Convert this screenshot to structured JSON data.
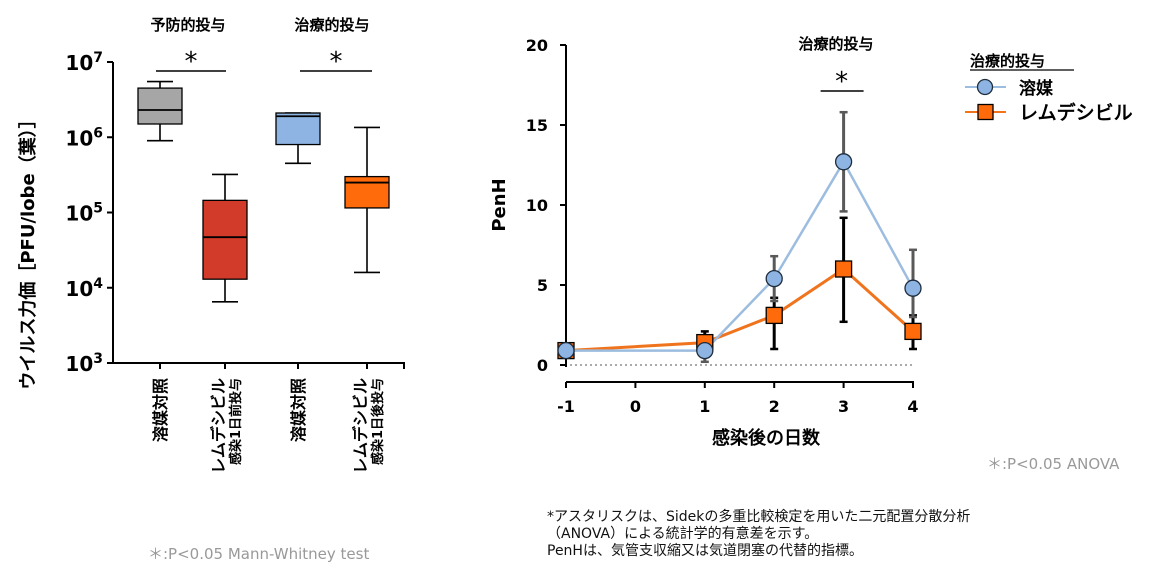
{
  "chart_data": [
    {
      "type": "boxplot",
      "ylabel": "ウイルス力価［PFU/lobe（葉）］",
      "yscale": "log",
      "ylim": [
        1000,
        10000000
      ],
      "yticks": [
        {
          "value": 1000,
          "base": "10",
          "exp": "3"
        },
        {
          "value": 10000,
          "base": "10",
          "exp": "4"
        },
        {
          "value": 100000,
          "base": "10",
          "exp": "5"
        },
        {
          "value": 1000000,
          "base": "10",
          "exp": "6"
        },
        {
          "value": 10000000,
          "base": "10",
          "exp": "7"
        }
      ],
      "groups": [
        {
          "title": "予防的投与",
          "significance": "*"
        },
        {
          "title": "治療的投与",
          "significance": "*"
        }
      ],
      "boxes": [
        {
          "label_lines": [
            "溶媒対照"
          ],
          "color": "#a6a6a6",
          "min": 900000,
          "q1": 1500000,
          "median": 2300000,
          "q3": 4500000,
          "max": 5500000
        },
        {
          "label_lines": [
            "レムデシビル",
            "感染1日前投与"
          ],
          "color": "#d23b2a",
          "min": 6500,
          "q1": 13000,
          "median": 47000,
          "q3": 145000,
          "max": 320000
        },
        {
          "label_lines": [
            "溶媒対照"
          ],
          "color": "#8db4e2",
          "min": 450000,
          "q1": 800000,
          "median": 1900000,
          "q3": 2100000,
          "max": 2100000
        },
        {
          "label_lines": [
            "レムデシビル",
            "感染1日後投与"
          ],
          "color": "#ff6a0a",
          "min": 16000,
          "q1": 115000,
          "median": 250000,
          "q3": 300000,
          "max": 1350000
        }
      ],
      "footnote": "＊:P<0.05 Mann-Whitney test"
    },
    {
      "type": "line",
      "title": "治療的投与",
      "xlabel": "感染後の日数",
      "ylabel": "PenH",
      "xlim": [
        -1,
        4
      ],
      "ylim": [
        0,
        20
      ],
      "xticks": [
        -1,
        0,
        1,
        2,
        3,
        4
      ],
      "yticks": [
        0,
        5,
        10,
        15,
        20
      ],
      "baseline_dotted": 0,
      "legend_title": "治療的投与",
      "legend_position": "top-right",
      "series": [
        {
          "name": "溶媒",
          "marker": "circle",
          "color": "#8db4e2",
          "line_color": "#9dbde0",
          "err_color": "#595959",
          "x": [
            -1,
            1,
            2,
            3,
            4
          ],
          "y": [
            0.9,
            0.9,
            5.4,
            12.7,
            4.8
          ],
          "err_low": [
            0.9,
            0.2,
            4.0,
            9.6,
            3.0
          ],
          "err_high": [
            0.9,
            1.0,
            6.8,
            15.8,
            7.2
          ]
        },
        {
          "name": "レムデシビル",
          "marker": "square",
          "color": "#ff6a0a",
          "line_color": "#f0741e",
          "err_color": "#000000",
          "x": [
            -1,
            1,
            2,
            3,
            4
          ],
          "y": [
            0.9,
            1.4,
            3.1,
            6.0,
            2.1
          ],
          "err_low": [
            0.9,
            0.8,
            1.0,
            2.7,
            1.0
          ],
          "err_high": [
            0.9,
            2.1,
            4.2,
            9.2,
            3.1
          ]
        }
      ],
      "annotations": [
        {
          "x": 3,
          "text": "*"
        }
      ],
      "footnote": "＊:P<0.05 ANOVA"
    }
  ],
  "notes": [
    "*アスタリスクは、Sidekの多重比較検定を用いた二元配置分散分析",
    "（ANOVA）による統計学的有意差を示す。",
    "PenHは、気管支収縮又は気道閉塞の代替的指標。"
  ]
}
